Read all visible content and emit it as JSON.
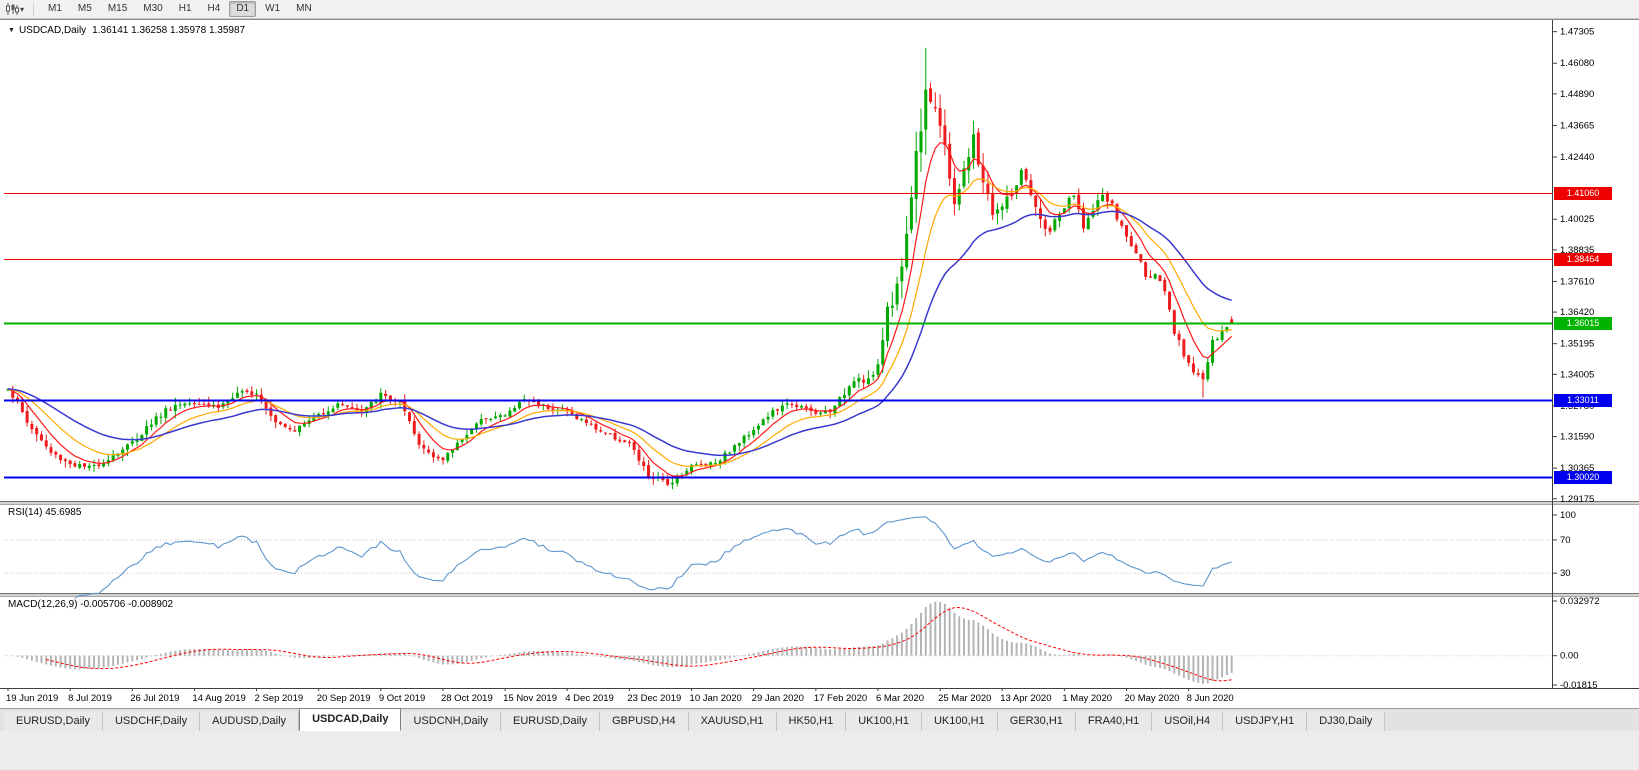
{
  "toolbar": {
    "icons": {
      "chart_type": "candlestick-chart-icon",
      "dropdown": "chevron-down-icon"
    },
    "timeframes": [
      {
        "label": "M1",
        "active": false
      },
      {
        "label": "M5",
        "active": false
      },
      {
        "label": "M15",
        "active": false
      },
      {
        "label": "M30",
        "active": false
      },
      {
        "label": "H1",
        "active": false
      },
      {
        "label": "H4",
        "active": false
      },
      {
        "label": "D1",
        "active": true
      },
      {
        "label": "W1",
        "active": false
      },
      {
        "label": "MN",
        "active": false
      }
    ]
  },
  "chart": {
    "title": "USDCAD,Daily",
    "ohlc_text": "1.36141 1.36258 1.35978 1.35987",
    "title_marker_icon": "triangle-down-icon"
  },
  "price_axis": {
    "ticks": [
      "1.47305",
      "1.46080",
      "1.44890",
      "1.43665",
      "1.42440",
      "1.40025",
      "1.38835",
      "1.37610",
      "1.36420",
      "1.35195",
      "1.34005",
      "1.32780",
      "1.31590",
      "1.30365",
      "1.29175"
    ]
  },
  "indicators": {
    "rsi": {
      "label": "RSI(14) 45.6985"
    },
    "macd": {
      "label": "MACD(12,26,9) -0.005706 -0.008902"
    }
  },
  "tabs": [
    {
      "label": "EURUSD,Daily",
      "active": false
    },
    {
      "label": "USDCHF,Daily",
      "active": false
    },
    {
      "label": "AUDUSD,Daily",
      "active": false
    },
    {
      "label": "USDCAD,Daily",
      "active": true
    },
    {
      "label": "USDCNH,Daily",
      "active": false
    },
    {
      "label": "EURUSD,Daily",
      "active": false
    },
    {
      "label": "GBPUSD,H4",
      "active": false
    },
    {
      "label": "XAUUSD,H1",
      "active": false
    },
    {
      "label": "HK50,H1",
      "active": false
    },
    {
      "label": "UK100,H1",
      "active": false
    },
    {
      "label": "UK100,H1",
      "active": false
    },
    {
      "label": "GER30,H1",
      "active": false
    },
    {
      "label": "FRA40,H1",
      "active": false
    },
    {
      "label": "USOil,H4",
      "active": false
    },
    {
      "label": "USDJPY,H1",
      "active": false
    },
    {
      "label": "DJ30,Daily",
      "active": false
    }
  ],
  "chart_data": [
    {
      "type": "candlestick",
      "title": "USDCAD,Daily",
      "ylim": [
        1.2905,
        1.4768
      ],
      "candle_count": 257,
      "candles_per_label": 13,
      "x_axis_labels": [
        "19 Jun 2019",
        "8 Jul 2019",
        "26 Jul 2019",
        "14 Aug 2019",
        "2 Sep 2019",
        "20 Sep 2019",
        "9 Oct 2019",
        "28 Oct 2019",
        "15 Nov 2019",
        "4 Dec 2019",
        "23 Dec 2019",
        "10 Jan 2020",
        "29 Jan 2020",
        "17 Feb 2020",
        "6 Mar 2020",
        "25 Mar 2020",
        "13 Apr 2020",
        "1 May 2020",
        "20 May 2020",
        "8 Jun 2020"
      ],
      "last_ohlc": {
        "open": 1.36141,
        "high": 1.36258,
        "low": 1.35978,
        "close": 1.35987
      },
      "price_keyframes": [
        [
          0,
          1.3355,
          0.007
        ],
        [
          4,
          1.3215,
          0.006
        ],
        [
          9,
          1.3095,
          0.005
        ],
        [
          13,
          1.3055,
          0.005
        ],
        [
          17,
          1.3035,
          0.005
        ],
        [
          21,
          1.3075,
          0.005
        ],
        [
          26,
          1.3135,
          0.005
        ],
        [
          30,
          1.3215,
          0.006
        ],
        [
          34,
          1.3275,
          0.006
        ],
        [
          39,
          1.33,
          0.006
        ],
        [
          44,
          1.3275,
          0.005
        ],
        [
          48,
          1.332,
          0.005
        ],
        [
          52,
          1.3335,
          0.005
        ],
        [
          56,
          1.322,
          0.005
        ],
        [
          60,
          1.3185,
          0.004
        ],
        [
          65,
          1.3245,
          0.004
        ],
        [
          70,
          1.329,
          0.004
        ],
        [
          74,
          1.325,
          0.004
        ],
        [
          78,
          1.332,
          0.005
        ],
        [
          82,
          1.329,
          0.005
        ],
        [
          86,
          1.3125,
          0.005
        ],
        [
          91,
          1.3065,
          0.004
        ],
        [
          95,
          1.3155,
          0.004
        ],
        [
          100,
          1.3235,
          0.004
        ],
        [
          104,
          1.324,
          0.004
        ],
        [
          108,
          1.3305,
          0.004
        ],
        [
          112,
          1.328,
          0.004
        ],
        [
          117,
          1.3255,
          0.004
        ],
        [
          124,
          1.318,
          0.004
        ],
        [
          130,
          1.313,
          0.004
        ],
        [
          134,
          1.3005,
          0.005
        ],
        [
          138,
          1.2975,
          0.005
        ],
        [
          143,
          1.3045,
          0.004
        ],
        [
          148,
          1.306,
          0.004
        ],
        [
          152,
          1.312,
          0.004
        ],
        [
          156,
          1.319,
          0.004
        ],
        [
          160,
          1.3255,
          0.004
        ],
        [
          164,
          1.329,
          0.004
        ],
        [
          169,
          1.3245,
          0.004
        ],
        [
          173,
          1.327,
          0.005
        ],
        [
          177,
          1.339,
          0.007
        ],
        [
          180,
          1.338,
          0.007
        ],
        [
          182,
          1.342,
          0.008
        ],
        [
          184,
          1.366,
          0.012
        ],
        [
          186,
          1.373,
          0.012
        ],
        [
          188,
          1.395,
          0.016
        ],
        [
          190,
          1.425,
          0.02
        ],
        [
          192,
          1.453,
          0.022
        ],
        [
          194,
          1.445,
          0.02
        ],
        [
          196,
          1.425,
          0.018
        ],
        [
          198,
          1.408,
          0.014
        ],
        [
          200,
          1.418,
          0.012
        ],
        [
          202,
          1.431,
          0.012
        ],
        [
          204,
          1.415,
          0.01
        ],
        [
          206,
          1.403,
          0.01
        ],
        [
          208,
          1.405,
          0.009
        ],
        [
          210,
          1.41,
          0.009
        ],
        [
          212,
          1.418,
          0.009
        ],
        [
          214,
          1.409,
          0.008
        ],
        [
          216,
          1.399,
          0.008
        ],
        [
          218,
          1.396,
          0.007
        ],
        [
          221,
          1.405,
          0.007
        ],
        [
          223,
          1.409,
          0.007
        ],
        [
          225,
          1.398,
          0.006
        ],
        [
          227,
          1.403,
          0.006
        ],
        [
          229,
          1.41,
          0.006
        ],
        [
          231,
          1.405,
          0.006
        ],
        [
          234,
          1.393,
          0.006
        ],
        [
          236,
          1.387,
          0.005
        ],
        [
          238,
          1.379,
          0.005
        ],
        [
          240,
          1.378,
          0.005
        ],
        [
          242,
          1.372,
          0.005
        ],
        [
          244,
          1.356,
          0.006
        ],
        [
          246,
          1.348,
          0.006
        ],
        [
          248,
          1.342,
          0.006
        ],
        [
          250,
          1.338,
          0.006
        ],
        [
          252,
          1.352,
          0.006
        ],
        [
          254,
          1.356,
          0.005
        ],
        [
          256,
          1.35987,
          0.004
        ]
      ],
      "special_points": [
        {
          "index": 192,
          "high": 1.4668
        },
        {
          "index": 250,
          "low": 1.331
        }
      ],
      "moving_averages": [
        {
          "name": "ma-fast",
          "type": "ema",
          "period": 7,
          "color": "#ff1a1a",
          "width": 1.2
        },
        {
          "name": "ma-medium",
          "type": "ema",
          "period": 15,
          "color": "#ffaa00",
          "width": 1.2
        },
        {
          "name": "ma-slow",
          "type": "ema",
          "period": 32,
          "color": "#3939cf",
          "width": 1.5
        }
      ],
      "horizontal_lines": [
        {
          "price": 1.4106,
          "label": "1.41060",
          "color": "#ee0000",
          "width": 1
        },
        {
          "price": 1.38464,
          "label": "1.38464",
          "color": "#ee0000",
          "width": 1
        },
        {
          "price": 1.36015,
          "label": "1.36015",
          "color": "#00b300",
          "width": 2
        },
        {
          "price": 1.33011,
          "label": "1.33011",
          "color": "#0000ee",
          "width": 2
        },
        {
          "price": 1.3002,
          "label": "1.30020",
          "color": "#0000ee",
          "width": 2
        }
      ],
      "colors": {
        "up": "#00a800",
        "down": "#ee1c1c"
      }
    },
    {
      "type": "line",
      "name": "RSI",
      "period": 14,
      "current_value": 45.6985,
      "range": [
        0,
        100
      ],
      "levels": [
        70,
        30
      ],
      "axis_labels": [
        "100",
        "70",
        "30"
      ],
      "axis_values": [
        100,
        70,
        30
      ],
      "color": "#5e97d0"
    },
    {
      "type": "bar+line",
      "name": "MACD",
      "fast": 12,
      "slow": 26,
      "signal": 9,
      "current_values": [
        "-0.005706",
        "-0.008902"
      ],
      "axis_labels": [
        "0.032972",
        "0.00",
        "-0.01815"
      ],
      "axis_values": [
        0.032972,
        0.0,
        -0.01815
      ],
      "histogram_color": "#b4b4b4",
      "signal_color": "#ff0000",
      "signal_style": "dashed"
    }
  ]
}
